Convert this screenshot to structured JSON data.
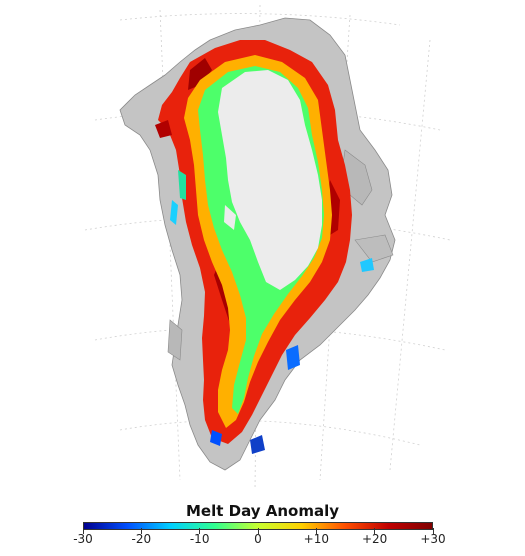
{
  "legend": {
    "title": "Melt Day Anomaly",
    "ticks": [
      "-30",
      "-20",
      "-10",
      "0",
      "+10",
      "+20",
      "+30"
    ],
    "range": [
      -30,
      30
    ],
    "colormap": [
      "#00008f",
      "#0050ff",
      "#00d0ff",
      "#30ff90",
      "#c8ff30",
      "#ffd000",
      "#ff5000",
      "#c00000",
      "#800000"
    ]
  },
  "colors": {
    "land": "#c8c8c8",
    "land_shadow": "#9a9a9a",
    "ice_sheet_interior": "#ececec",
    "graticule": "#cfcfcf"
  }
}
